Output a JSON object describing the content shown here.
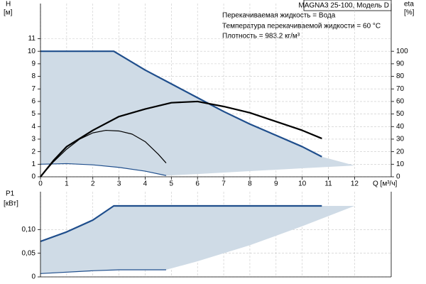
{
  "chart_data": [
    {
      "type": "line",
      "title": "MAGNA3 25-100, Модель D",
      "annotations": [
        "Перекачиваемая жидкость = Вода",
        "Температура перекачиваемой жидкости = 60 °C",
        "Плотность = 983.2 кг/м³"
      ],
      "y_label": "H",
      "y_unit": "[м]",
      "y2_label": "eta",
      "y2_unit": "[%]",
      "x_label": "Q [м³/ч]",
      "xlim": [
        0,
        13.4
      ],
      "ylim": [
        0,
        13.8
      ],
      "y2lim": [
        0,
        138
      ],
      "xticks": [
        0,
        1,
        2,
        3,
        4,
        5,
        6,
        7,
        8,
        9,
        10,
        11,
        12
      ],
      "yticks": [
        0,
        1,
        2,
        3,
        4,
        5,
        6,
        7,
        8,
        9,
        10,
        11
      ],
      "y2ticks": [
        0,
        10,
        20,
        30,
        40,
        50,
        60,
        70,
        80,
        90,
        100
      ],
      "grid": true,
      "series": [
        {
          "fill": true,
          "color": "#cfdbe6",
          "x": [
            0,
            2.8,
            4,
            5,
            6,
            7,
            8,
            9,
            10,
            10.75,
            12,
            10,
            8,
            6,
            4.8,
            4,
            3,
            2,
            1,
            0
          ],
          "values": [
            10,
            10,
            8.5,
            7.4,
            6.3,
            5.2,
            4.2,
            3.3,
            2.4,
            1.6,
            0.9,
            0.68,
            0.45,
            0.22,
            0.1,
            0.45,
            0.75,
            0.95,
            1.05,
            1
          ]
        },
        {
          "color": "#1f4e8c",
          "width": 2.2,
          "x": [
            0,
            2.8,
            4,
            5,
            6,
            7,
            8,
            9,
            10,
            10.75
          ],
          "values": [
            10,
            10,
            8.5,
            7.4,
            6.3,
            5.2,
            4.2,
            3.3,
            2.4,
            1.6
          ]
        },
        {
          "color": "#1f4e8c",
          "width": 1.2,
          "x": [
            0,
            1,
            2,
            3,
            4,
            4.8
          ],
          "values": [
            1,
            1.05,
            0.95,
            0.75,
            0.45,
            0.1
          ]
        },
        {
          "color": "#000000",
          "width": 2.2,
          "axis": "y2",
          "x": [
            0,
            0.5,
            1,
            2,
            3,
            4,
            5,
            6,
            7,
            8,
            9,
            10,
            10.75
          ],
          "values": [
            0,
            13,
            24,
            37,
            48,
            54,
            59,
            60,
            56,
            51,
            44,
            37,
            30.5
          ]
        },
        {
          "color": "#000000",
          "width": 1.2,
          "axis": "y2",
          "x": [
            0,
            0.5,
            1,
            1.5,
            2,
            2.5,
            3,
            3.5,
            4,
            4.5,
            4.8
          ],
          "values": [
            0,
            12,
            22,
            30,
            35,
            37,
            36.5,
            34,
            28,
            18,
            11
          ]
        }
      ]
    },
    {
      "type": "line",
      "y_label": "P1",
      "y_unit": "[кВт]",
      "xlim": [
        0,
        13.4
      ],
      "ylim": [
        0,
        0.18
      ],
      "yticks": [
        0,
        {
          "value": 0.05,
          "label": "0,05"
        },
        {
          "value": 0.1,
          "label": "0,10"
        }
      ],
      "grid": true,
      "series": [
        {
          "fill": true,
          "color": "#cfdbe6",
          "x": [
            0,
            1,
            2,
            2.8,
            10.75,
            12,
            10,
            8,
            6,
            4.8,
            3,
            2,
            0
          ],
          "values": [
            0.075,
            0.095,
            0.12,
            0.15,
            0.15,
            0.15,
            0.107,
            0.067,
            0.033,
            0.015,
            0.015,
            0.013,
            0.007
          ]
        },
        {
          "color": "#1f4e8c",
          "width": 2.2,
          "x": [
            0,
            1,
            2,
            2.8,
            10.75
          ],
          "values": [
            0.075,
            0.095,
            0.12,
            0.15,
            0.15
          ]
        },
        {
          "color": "#1f4e8c",
          "width": 1.2,
          "x": [
            0,
            2,
            3,
            4.8
          ],
          "values": [
            0.007,
            0.013,
            0.015,
            0.015
          ]
        }
      ]
    }
  ]
}
